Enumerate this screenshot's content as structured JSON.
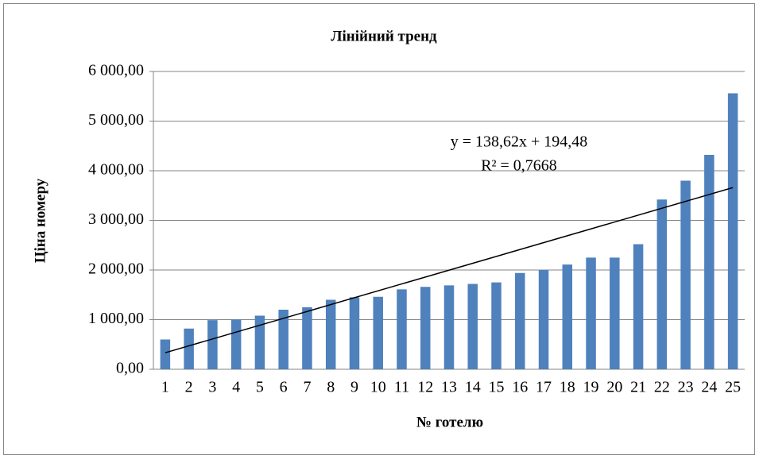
{
  "chart_data": {
    "type": "bar",
    "title": "Лінійний тренд",
    "x_label": "№ готелю",
    "y_label": "Ціна номеру",
    "categories": [
      "1",
      "2",
      "3",
      "4",
      "5",
      "6",
      "7",
      "8",
      "9",
      "10",
      "11",
      "12",
      "13",
      "14",
      "15",
      "16",
      "17",
      "18",
      "19",
      "20",
      "21",
      "22",
      "23",
      "24",
      "25"
    ],
    "values": [
      600,
      820,
      990,
      1000,
      1080,
      1200,
      1250,
      1400,
      1450,
      1460,
      1610,
      1660,
      1690,
      1720,
      1750,
      1940,
      2000,
      2110,
      2250,
      2250,
      2520,
      3420,
      3800,
      4320,
      5560
    ],
    "color": "#4f81bd",
    "ylim": [
      0,
      6000
    ],
    "yticks": [
      {
        "value": 0,
        "label": "0,00"
      },
      {
        "value": 1000,
        "label": "1 000,00"
      },
      {
        "value": 2000,
        "label": "2 000,00"
      },
      {
        "value": 3000,
        "label": "3 000,00"
      },
      {
        "value": 4000,
        "label": "4 000,00"
      },
      {
        "value": 5000,
        "label": "5 000,00"
      },
      {
        "value": 6000,
        "label": "6 000,00"
      }
    ],
    "grid": true,
    "trendline": {
      "slope": 138.62,
      "intercept": 194.48,
      "equation": "y = 138,62x + 194,48",
      "r2": 0.7668,
      "r2_label": "R² = 0,7668",
      "color": "#000000"
    }
  }
}
